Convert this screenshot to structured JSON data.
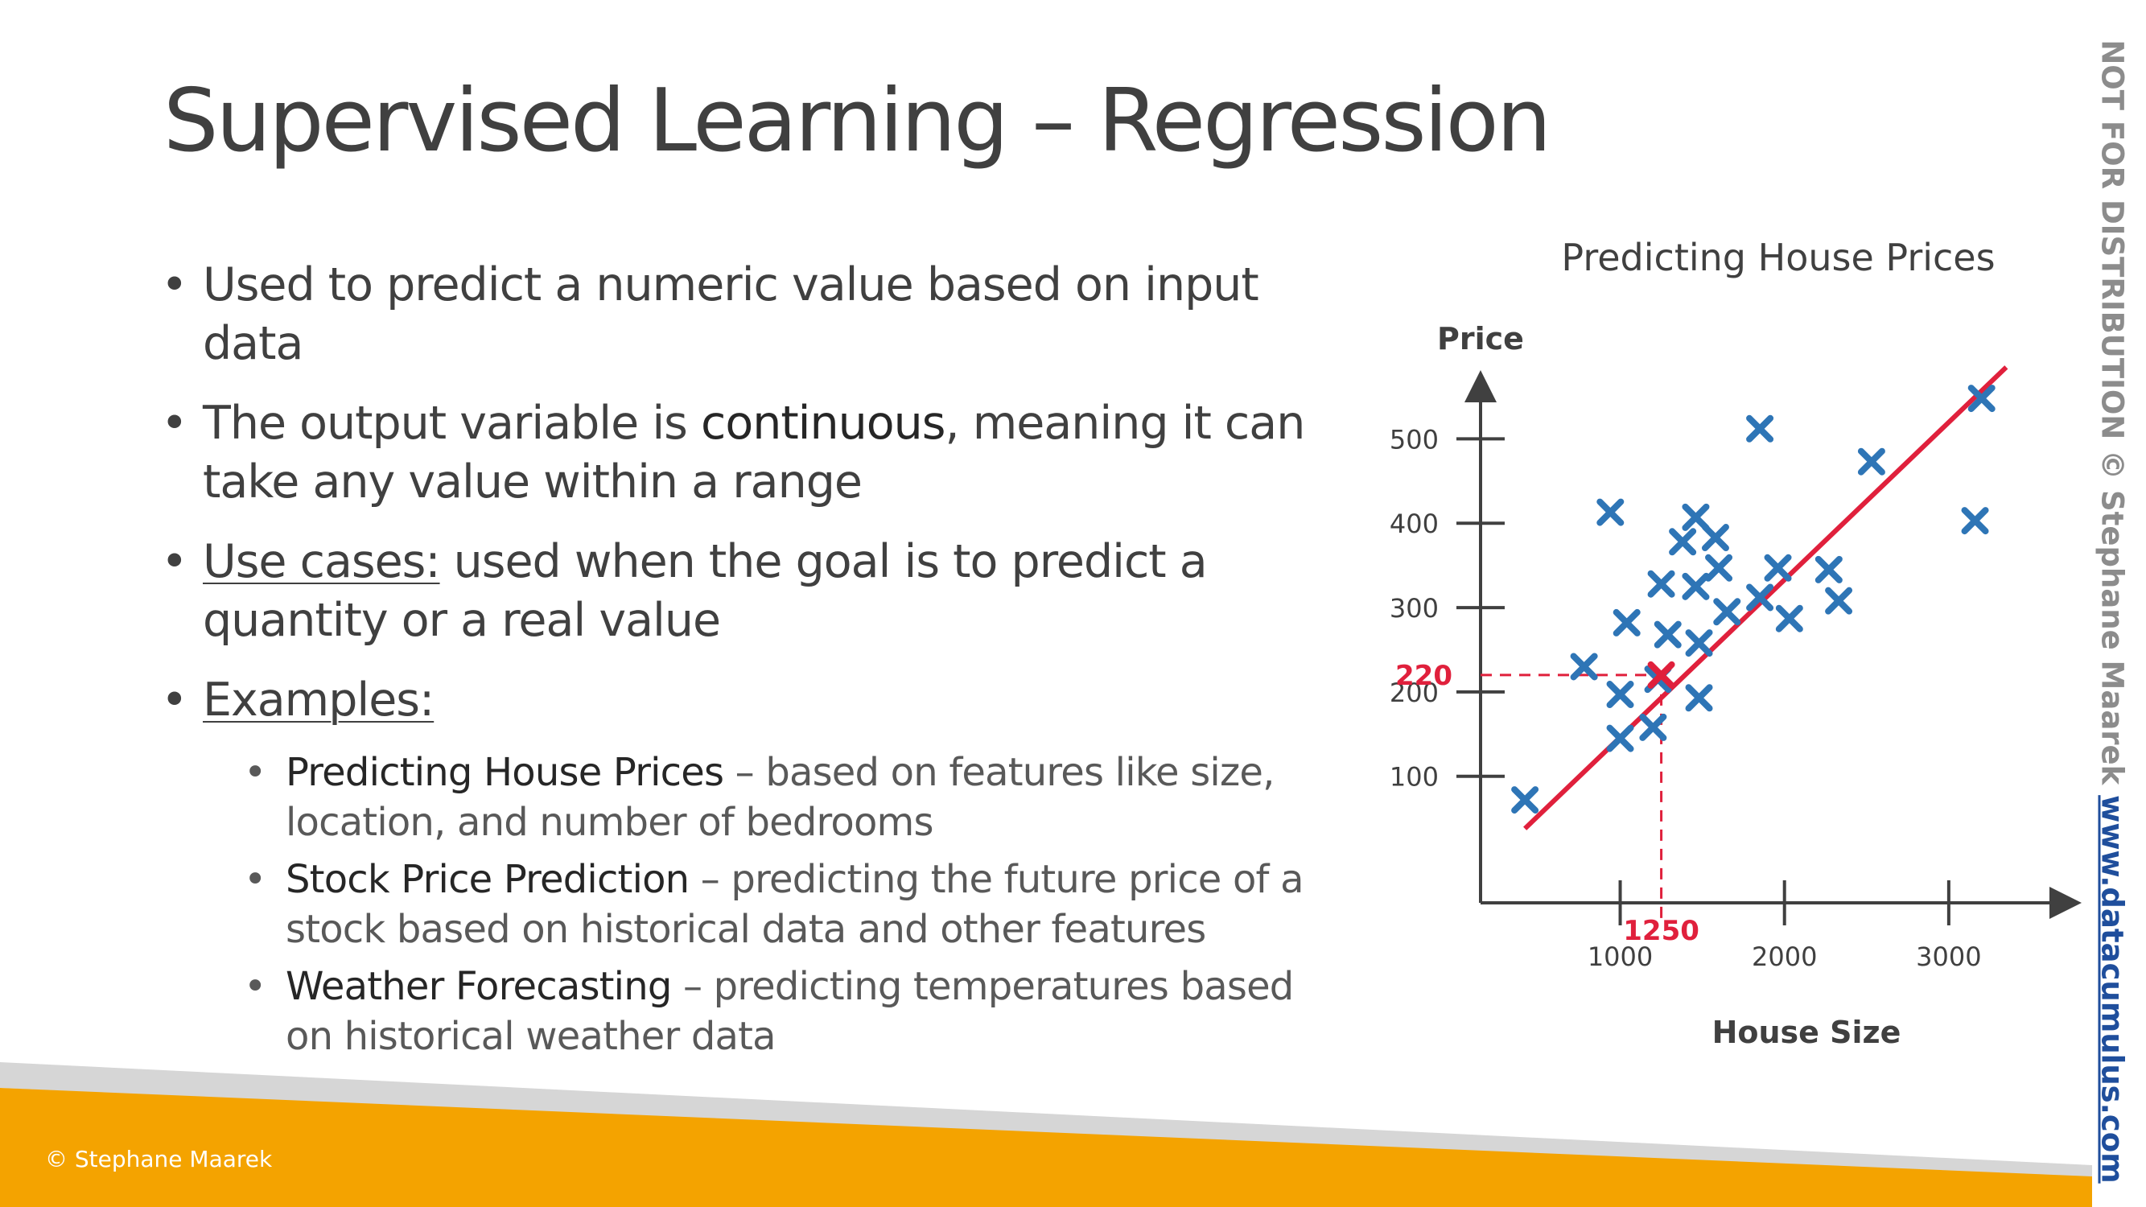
{
  "slide": {
    "title": "Supervised Learning – Regression",
    "bullets": [
      {
        "text": "Used to predict a numeric value based on input data"
      },
      {
        "before": "The output variable is ",
        "emphasis": "continuous",
        "after": ", meaning it can take any value within a range"
      },
      {
        "label": "Use cases:",
        "text": " used when the goal is to predict a quantity or a real value"
      },
      {
        "label": "Examples:"
      }
    ],
    "examples": [
      {
        "lead": "Predicting House Prices",
        "desc": " – based on features like size, location, and number of bedrooms"
      },
      {
        "lead": "Stock Price Prediction",
        "desc": " – predicting the future price of a stock based on historical data and other features"
      },
      {
        "lead": "Weather Forecasting",
        "desc": " – predicting temperatures based on historical weather data"
      }
    ],
    "bullet_glyph": "•"
  },
  "chart_data": {
    "type": "scatter",
    "title": "Predicting House Prices",
    "xlabel": "House Size",
    "ylabel": "Price",
    "x_ticks": [
      1000,
      2000,
      3000
    ],
    "y_ticks": [
      100,
      200,
      300,
      400,
      500
    ],
    "xlim": [
      150,
      3750
    ],
    "ylim": [
      -50,
      570
    ],
    "points": [
      {
        "x": 420,
        "y": 72
      },
      {
        "x": 780,
        "y": 230
      },
      {
        "x": 940,
        "y": 413
      },
      {
        "x": 1000,
        "y": 197
      },
      {
        "x": 1000,
        "y": 145
      },
      {
        "x": 1040,
        "y": 282
      },
      {
        "x": 1200,
        "y": 158
      },
      {
        "x": 1230,
        "y": 215
      },
      {
        "x": 1250,
        "y": 328
      },
      {
        "x": 1290,
        "y": 268
      },
      {
        "x": 1380,
        "y": 378
      },
      {
        "x": 1460,
        "y": 407
      },
      {
        "x": 1460,
        "y": 325
      },
      {
        "x": 1480,
        "y": 258
      },
      {
        "x": 1480,
        "y": 193
      },
      {
        "x": 1580,
        "y": 383
      },
      {
        "x": 1600,
        "y": 347
      },
      {
        "x": 1650,
        "y": 295
      },
      {
        "x": 1850,
        "y": 312
      },
      {
        "x": 1850,
        "y": 512
      },
      {
        "x": 1960,
        "y": 347
      },
      {
        "x": 2030,
        "y": 287
      },
      {
        "x": 2270,
        "y": 345
      },
      {
        "x": 2330,
        "y": 308
      },
      {
        "x": 2530,
        "y": 473
      },
      {
        "x": 3160,
        "y": 403
      },
      {
        "x": 3200,
        "y": 548
      }
    ],
    "regression_line": {
      "x": [
        420,
        3350
      ],
      "y": [
        38,
        585
      ]
    },
    "highlight": {
      "x": 1250,
      "y": 220,
      "x_label": "1250",
      "y_label": "220"
    },
    "colors": {
      "points": "#2e75b6",
      "line": "#e0203c",
      "axes": "#404040",
      "highlight": "#e0203c"
    },
    "grid": false,
    "legend": "none"
  },
  "footer": {
    "copyright": "© Stephane Maarek",
    "side_text": "NOT FOR DISTRIBUTION © Stephane Maarek ",
    "side_url": "www.datacumulus.com",
    "colors": {
      "band": "#f4a300",
      "stripe": "#d6d6d6"
    }
  }
}
